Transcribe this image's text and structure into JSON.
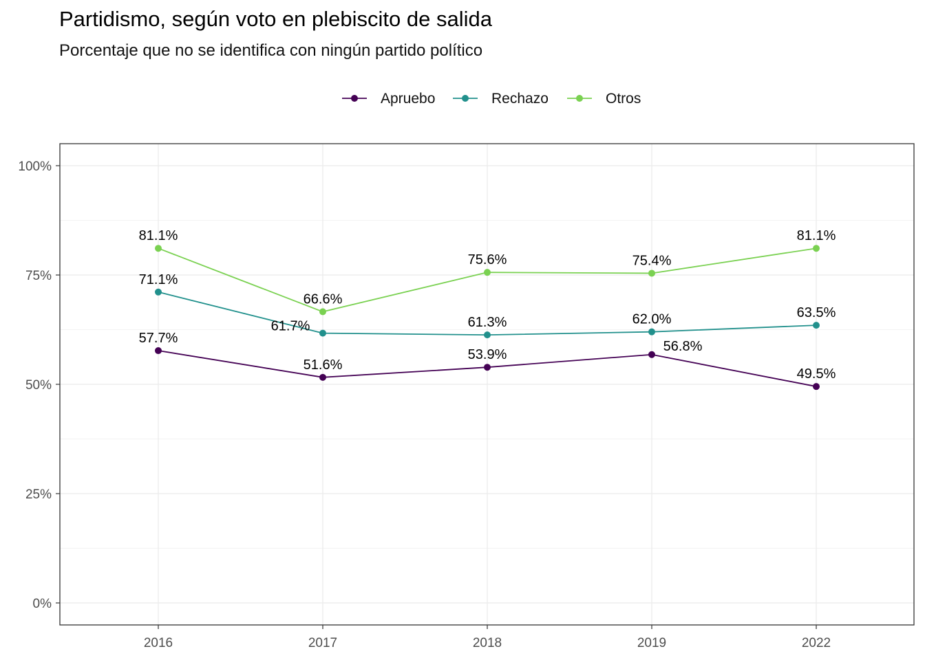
{
  "chart_data": {
    "type": "line",
    "title": "Partidismo, según voto en plebiscito de salida",
    "subtitle": "Porcentaje que no se identifica con ningún partido político",
    "xlabel": "",
    "ylabel": "",
    "categories": [
      "2016",
      "2017",
      "2018",
      "2019",
      "2022"
    ],
    "ylim": [
      0,
      100
    ],
    "y_ticks": [
      0,
      25,
      50,
      75,
      100
    ],
    "y_tick_labels": [
      "0%",
      "25%",
      "50%",
      "75%",
      "100%"
    ],
    "grid": true,
    "legend_position": "top",
    "series": [
      {
        "name": "Apruebo",
        "color": "#440154",
        "values": [
          57.7,
          51.6,
          53.9,
          56.8,
          49.5
        ],
        "labels": [
          "57.7%",
          "51.6%",
          "53.9%",
          "56.8%",
          "49.5%"
        ]
      },
      {
        "name": "Rechazo",
        "color": "#21908C",
        "values": [
          71.1,
          61.7,
          61.3,
          62.0,
          63.5
        ],
        "labels": [
          "71.1%",
          "61.7%",
          "61.3%",
          "62.0%",
          "63.5%"
        ]
      },
      {
        "name": "Otros",
        "color": "#7AD151",
        "values": [
          81.1,
          66.6,
          75.6,
          75.4,
          81.1
        ],
        "labels": [
          "81.1%",
          "66.6%",
          "75.6%",
          "75.4%",
          "81.1%"
        ]
      }
    ]
  }
}
